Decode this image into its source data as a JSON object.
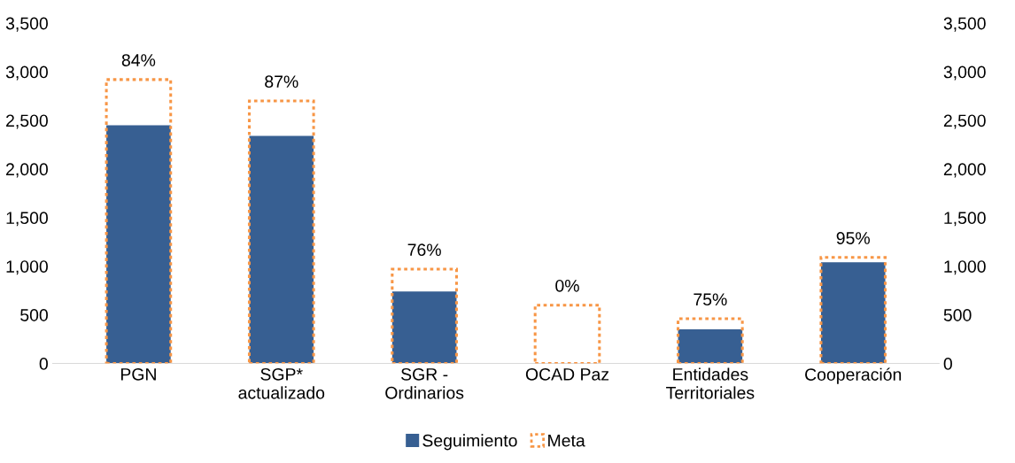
{
  "chart_data": {
    "type": "bar",
    "categories": [
      "PGN",
      "SGP*\nactualizado",
      "SGR -\nOrdinarios",
      "OCAD Paz",
      "Entidades\nTerritoriales",
      "Cooperación"
    ],
    "series": [
      {
        "name": "Seguimiento",
        "color": "#375f92",
        "values": [
          2450,
          2340,
          740,
          0,
          350,
          1040
        ]
      },
      {
        "name": "Meta",
        "color": "#f79646",
        "axis": "y2",
        "line_style": "dotted",
        "values": [
          2920,
          2700,
          970,
          600,
          460,
          1090
        ]
      }
    ],
    "annotations": [
      {
        "text": "84%",
        "x": "PGN",
        "y": 2920
      },
      {
        "text": "87%",
        "x": "SGP*\nactualizado",
        "y": 2700
      },
      {
        "text": "76%",
        "x": "SGR -\nOrdinarios",
        "y": 970
      },
      {
        "text": "0%",
        "x": "OCAD Paz",
        "y": 600
      },
      {
        "text": "75%",
        "x": "Entidades\nTerritoriales",
        "y": 460
      },
      {
        "text": "95%",
        "x": "Cooperación",
        "y": 1090
      }
    ],
    "ylim": [
      0,
      3500
    ],
    "yticks": [
      0,
      500,
      {
        "value": 1000,
        "label": "1,000"
      },
      {
        "value": 1500,
        "label": "1,500"
      },
      {
        "value": 2000,
        "label": "2,000"
      },
      {
        "value": 2500,
        "label": "2,500"
      },
      {
        "value": 3000,
        "label": "3,000"
      },
      {
        "value": 3500,
        "label": "3,500"
      }
    ],
    "y2lim": [
      0,
      3500
    ],
    "y2ticks": [
      0,
      500,
      {
        "value": 1000,
        "label": "1,000"
      },
      {
        "value": 1500,
        "label": "1,500"
      },
      {
        "value": 2000,
        "label": "2,000"
      },
      {
        "value": 2500,
        "label": "2,500"
      },
      {
        "value": 3000,
        "label": "3,000"
      },
      {
        "value": 3500,
        "label": "3,500"
      }
    ],
    "legend": "bottom",
    "grid": false
  }
}
